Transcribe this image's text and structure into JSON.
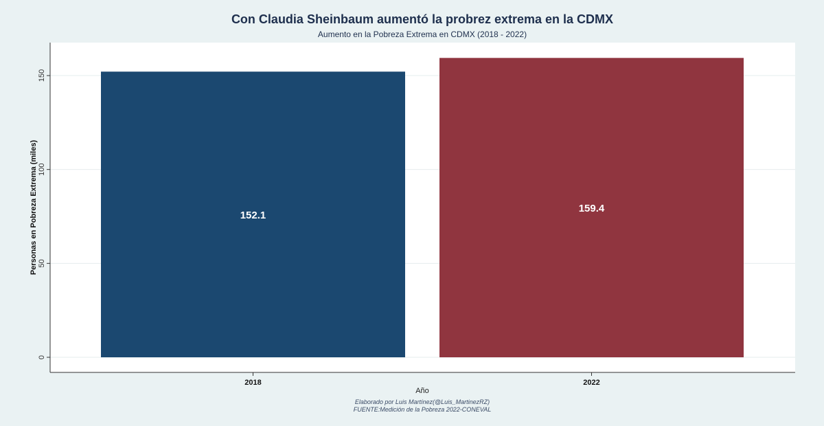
{
  "chart_data": {
    "type": "bar",
    "title": "Con Claudia Sheinbaum aumentó la probrez extrema en la CDMX",
    "subtitle": "Aumento en la Pobreza Extrema en CDMX (2018 - 2022)",
    "xlabel": "Año",
    "ylabel": "Personas en Pobreza Extrema (miles)",
    "categories": [
      "2018",
      "2022"
    ],
    "values": [
      152.1,
      159.4
    ],
    "data_labels": [
      "152.1",
      "159.4"
    ],
    "colors": [
      "#1b4870",
      "#90353f"
    ],
    "ylim": [
      0,
      160
    ],
    "yticks": [
      0,
      50,
      100,
      150
    ],
    "ytick_labels": [
      "0",
      "50",
      "100",
      "150"
    ],
    "grid": true,
    "legend": "none"
  },
  "footer": {
    "credit": "Elaborado por Luis Martínez(@Luis_MartinezRZ)",
    "source": "FUENTE:Medición de la Pobreza 2022-CONEVAL"
  }
}
